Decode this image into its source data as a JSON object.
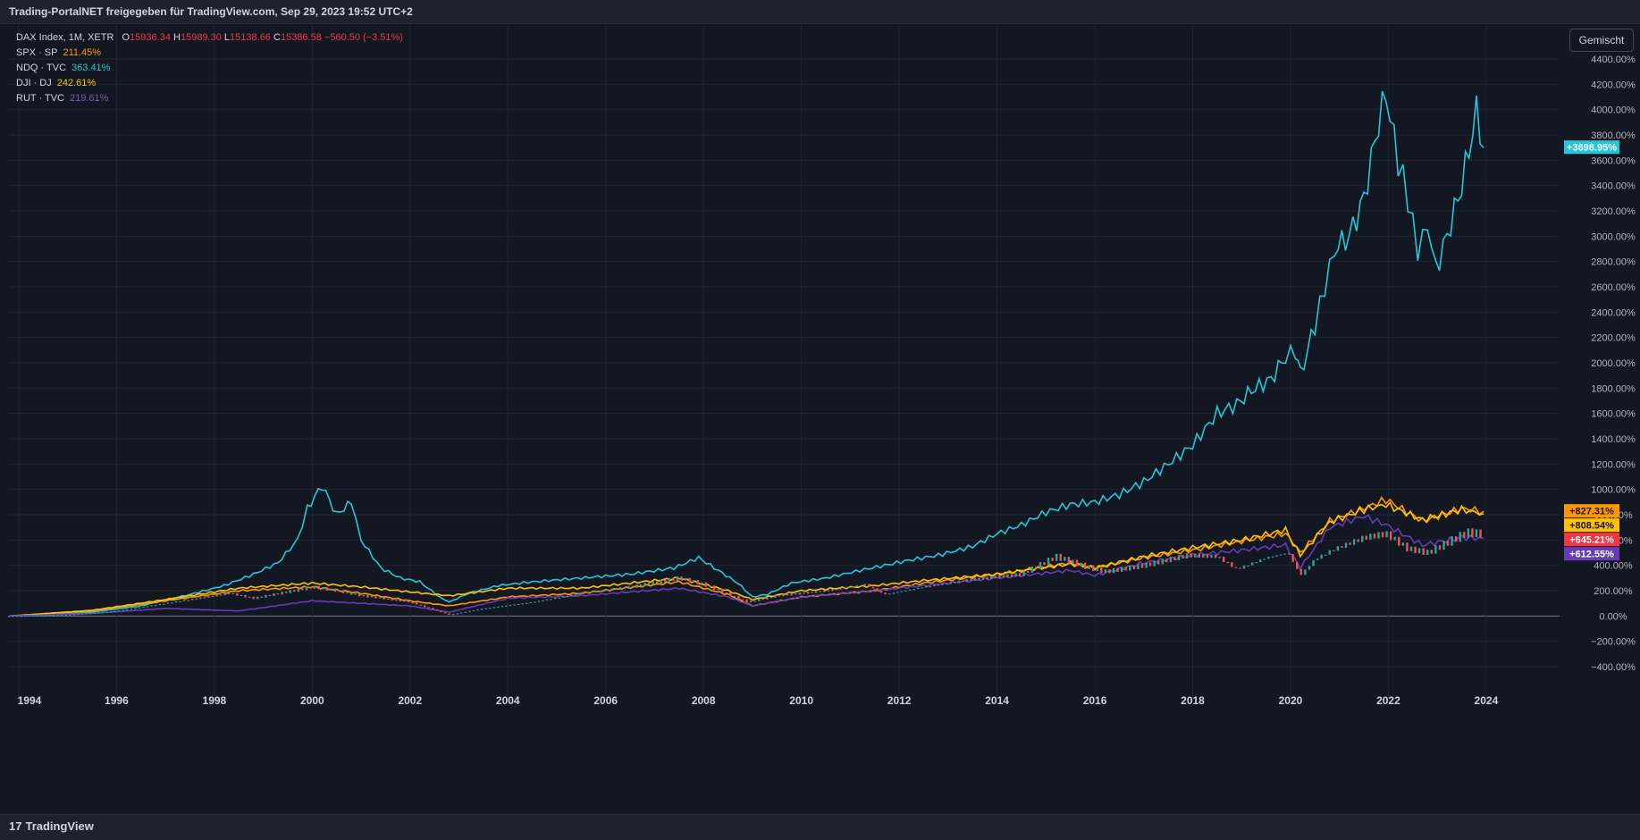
{
  "header": {
    "title": "Trading-PortalNET freigegeben für TradingView.com, Sep 29, 2023 19:52 UTC+2"
  },
  "legend": {
    "main": {
      "symbol": "DAX Index, 1M, XETR",
      "o_label": "O",
      "o_value": "15936.34",
      "h_label": "H",
      "h_value": "15989.30",
      "l_label": "L",
      "l_value": "15138.66",
      "c_label": "C",
      "c_value": "15386.58",
      "change": "−560.50 (−3.51%)"
    },
    "compares": [
      {
        "symbol": "SPX · SP",
        "value": "211.45%",
        "color": "#ff9800"
      },
      {
        "symbol": "NDQ · TVC",
        "value": "363.41%",
        "color": "#26c6da"
      },
      {
        "symbol": "DJI · DJ",
        "value": "242.61%",
        "color": "#ffc107"
      },
      {
        "symbol": "RUT · TVC",
        "value": "219.61%",
        "color": "#673ab7"
      }
    ]
  },
  "toolbar": {
    "mode_label": "Gemischt"
  },
  "footer": {
    "brand": "TradingView",
    "logo_glyph": "17"
  },
  "colors": {
    "background": "#131722",
    "grid": "#1f2430",
    "zero_line": "#787b86",
    "up": "#26a69a",
    "down": "#ef5350"
  },
  "chart_data": {
    "type": "line",
    "ylabel": "",
    "yunit": "%",
    "ylim": [
      -400,
      4400
    ],
    "yticks": [
      "4400.00%",
      "4200.00%",
      "4000.00%",
      "3800.00%",
      "3600.00%",
      "3400.00%",
      "3200.00%",
      "3000.00%",
      "2800.00%",
      "2600.00%",
      "2400.00%",
      "2200.00%",
      "2000.00%",
      "1800.00%",
      "1600.00%",
      "1400.00%",
      "1200.00%",
      "1000.00%",
      "800.00%",
      "600.00%",
      "400.00%",
      "200.00%",
      "0.00%",
      "−200.00%",
      "−400.00%"
    ],
    "xlim": [
      1993.8,
      2025.5
    ],
    "xticks": [
      "1994",
      "1996",
      "1998",
      "2000",
      "2002",
      "2004",
      "2006",
      "2008",
      "2010",
      "2012",
      "2014",
      "2016",
      "2018",
      "2020",
      "2022",
      "2024"
    ],
    "grid": true,
    "series": [
      {
        "name": "NDQ · TVC",
        "color": "#26c6da",
        "last_label": "+3698.95%",
        "points": [
          [
            1993.8,
            0
          ],
          [
            1994.5,
            5
          ],
          [
            1995.5,
            30
          ],
          [
            1996.5,
            80
          ],
          [
            1997.5,
            170
          ],
          [
            1998.2,
            240
          ],
          [
            1998.8,
            330
          ],
          [
            1999.3,
            420
          ],
          [
            1999.7,
            600
          ],
          [
            1999.9,
            850
          ],
          [
            2000.2,
            1030
          ],
          [
            2000.5,
            800
          ],
          [
            2000.8,
            900
          ],
          [
            2001.0,
            600
          ],
          [
            2001.4,
            380
          ],
          [
            2001.8,
            300
          ],
          [
            2002.2,
            270
          ],
          [
            2002.6,
            150
          ],
          [
            2002.8,
            110
          ],
          [
            2003.2,
            180
          ],
          [
            2003.8,
            240
          ],
          [
            2004.5,
            270
          ],
          [
            2005.5,
            300
          ],
          [
            2006.5,
            330
          ],
          [
            2007.4,
            380
          ],
          [
            2007.9,
            460
          ],
          [
            2008.3,
            360
          ],
          [
            2008.7,
            260
          ],
          [
            2009.0,
            150
          ],
          [
            2009.3,
            170
          ],
          [
            2009.8,
            260
          ],
          [
            2010.5,
            300
          ],
          [
            2011.2,
            360
          ],
          [
            2011.7,
            400
          ],
          [
            2012.2,
            440
          ],
          [
            2012.8,
            480
          ],
          [
            2013.5,
            550
          ],
          [
            2014.0,
            650
          ],
          [
            2014.5,
            720
          ],
          [
            2015.0,
            820
          ],
          [
            2015.5,
            880
          ],
          [
            2016.0,
            900
          ],
          [
            2016.5,
            960
          ],
          [
            2017.0,
            1060
          ],
          [
            2017.5,
            1200
          ],
          [
            2018.0,
            1350
          ],
          [
            2018.5,
            1600
          ],
          [
            2018.9,
            1670
          ],
          [
            2019.2,
            1780
          ],
          [
            2019.6,
            1870
          ],
          [
            2019.9,
            2050
          ],
          [
            2020.1,
            2100
          ],
          [
            2020.2,
            1900
          ],
          [
            2020.5,
            2300
          ],
          [
            2020.7,
            2600
          ],
          [
            2020.9,
            2900
          ],
          [
            2021.2,
            3000
          ],
          [
            2021.5,
            3300
          ],
          [
            2021.8,
            3900
          ],
          [
            2021.95,
            4120
          ],
          [
            2022.2,
            3600
          ],
          [
            2022.4,
            3300
          ],
          [
            2022.6,
            2880
          ],
          [
            2022.8,
            3100
          ],
          [
            2022.97,
            2740
          ],
          [
            2023.2,
            3000
          ],
          [
            2023.5,
            3400
          ],
          [
            2023.8,
            3980
          ],
          [
            2023.95,
            3700
          ]
        ]
      },
      {
        "name": "SPX · SP",
        "color": "#ff9800",
        "last_label": "+827.31%",
        "points": [
          [
            1993.8,
            0
          ],
          [
            1995.5,
            40
          ],
          [
            1997.0,
            120
          ],
          [
            1998.5,
            200
          ],
          [
            2000.0,
            230
          ],
          [
            2001.0,
            180
          ],
          [
            2002.0,
            120
          ],
          [
            2002.8,
            80
          ],
          [
            2004.0,
            150
          ],
          [
            2005.5,
            180
          ],
          [
            2007.5,
            270
          ],
          [
            2008.5,
            170
          ],
          [
            2009.0,
            80
          ],
          [
            2010.0,
            150
          ],
          [
            2011.5,
            200
          ],
          [
            2012.5,
            260
          ],
          [
            2014.0,
            330
          ],
          [
            2015.5,
            420
          ],
          [
            2016.0,
            380
          ],
          [
            2017.0,
            460
          ],
          [
            2018.0,
            520
          ],
          [
            2019.0,
            590
          ],
          [
            2019.9,
            650
          ],
          [
            2020.2,
            500
          ],
          [
            2020.8,
            750
          ],
          [
            2021.5,
            850
          ],
          [
            2021.95,
            920
          ],
          [
            2022.7,
            750
          ],
          [
            2023.5,
            850
          ],
          [
            2023.95,
            827
          ]
        ]
      },
      {
        "name": "DJI · DJ",
        "color": "#ffc107",
        "last_label": "+808.54%",
        "points": [
          [
            1993.8,
            0
          ],
          [
            1995.5,
            45
          ],
          [
            1997.0,
            130
          ],
          [
            1998.5,
            220
          ],
          [
            2000.0,
            260
          ],
          [
            2001.0,
            230
          ],
          [
            2002.0,
            190
          ],
          [
            2002.8,
            160
          ],
          [
            2004.0,
            220
          ],
          [
            2005.5,
            220
          ],
          [
            2007.5,
            300
          ],
          [
            2008.5,
            200
          ],
          [
            2009.0,
            130
          ],
          [
            2010.0,
            200
          ],
          [
            2011.5,
            240
          ],
          [
            2012.5,
            280
          ],
          [
            2014.0,
            330
          ],
          [
            2015.5,
            410
          ],
          [
            2016.0,
            380
          ],
          [
            2017.0,
            470
          ],
          [
            2018.0,
            540
          ],
          [
            2019.0,
            600
          ],
          [
            2019.9,
            680
          ],
          [
            2020.2,
            480
          ],
          [
            2020.8,
            740
          ],
          [
            2021.5,
            840
          ],
          [
            2021.95,
            880
          ],
          [
            2022.7,
            760
          ],
          [
            2023.5,
            840
          ],
          [
            2023.95,
            808
          ]
        ]
      },
      {
        "name": "RUT · TVC",
        "color": "#673ab7",
        "last_label": "+612.55%",
        "points": [
          [
            1993.8,
            0
          ],
          [
            1995.5,
            20
          ],
          [
            1997.0,
            60
          ],
          [
            1998.5,
            40
          ],
          [
            2000.0,
            120
          ],
          [
            2001.0,
            100
          ],
          [
            2002.0,
            80
          ],
          [
            2002.8,
            30
          ],
          [
            2004.0,
            140
          ],
          [
            2005.5,
            160
          ],
          [
            2007.5,
            220
          ],
          [
            2008.5,
            150
          ],
          [
            2009.0,
            80
          ],
          [
            2010.0,
            150
          ],
          [
            2011.5,
            200
          ],
          [
            2012.5,
            240
          ],
          [
            2014.0,
            300
          ],
          [
            2015.5,
            360
          ],
          [
            2016.0,
            320
          ],
          [
            2017.0,
            420
          ],
          [
            2018.0,
            480
          ],
          [
            2019.0,
            520
          ],
          [
            2019.9,
            560
          ],
          [
            2020.2,
            380
          ],
          [
            2020.8,
            700
          ],
          [
            2021.5,
            790
          ],
          [
            2021.95,
            720
          ],
          [
            2022.7,
            560
          ],
          [
            2023.5,
            620
          ],
          [
            2023.95,
            612
          ]
        ]
      },
      {
        "name": "DAX Index, 1M, XETR",
        "style": "candles",
        "last_label": "+645.21%",
        "points": [
          [
            1993.8,
            0
          ],
          [
            1995.0,
            10
          ],
          [
            1996.0,
            40
          ],
          [
            1997.0,
            100
          ],
          [
            1998.3,
            180
          ],
          [
            1998.8,
            140
          ],
          [
            2000.0,
            230
          ],
          [
            2000.5,
            200
          ],
          [
            2001.0,
            160
          ],
          [
            2002.0,
            110
          ],
          [
            2002.8,
            10
          ],
          [
            2003.5,
            60
          ],
          [
            2004.5,
            110
          ],
          [
            2005.5,
            180
          ],
          [
            2006.5,
            230
          ],
          [
            2007.5,
            300
          ],
          [
            2008.0,
            250
          ],
          [
            2008.9,
            110
          ],
          [
            2009.5,
            160
          ],
          [
            2010.5,
            200
          ],
          [
            2011.3,
            250
          ],
          [
            2011.7,
            170
          ],
          [
            2012.5,
            230
          ],
          [
            2013.5,
            290
          ],
          [
            2014.5,
            330
          ],
          [
            2015.2,
            470
          ],
          [
            2015.8,
            390
          ],
          [
            2016.2,
            350
          ],
          [
            2017.0,
            400
          ],
          [
            2017.9,
            480
          ],
          [
            2018.5,
            470
          ],
          [
            2018.9,
            370
          ],
          [
            2019.5,
            460
          ],
          [
            2019.95,
            500
          ],
          [
            2020.2,
            320
          ],
          [
            2020.5,
            450
          ],
          [
            2020.9,
            530
          ],
          [
            2021.5,
            620
          ],
          [
            2021.95,
            650
          ],
          [
            2022.4,
            530
          ],
          [
            2022.8,
            500
          ],
          [
            2023.3,
            600
          ],
          [
            2023.6,
            660
          ],
          [
            2023.95,
            645
          ]
        ]
      }
    ]
  }
}
